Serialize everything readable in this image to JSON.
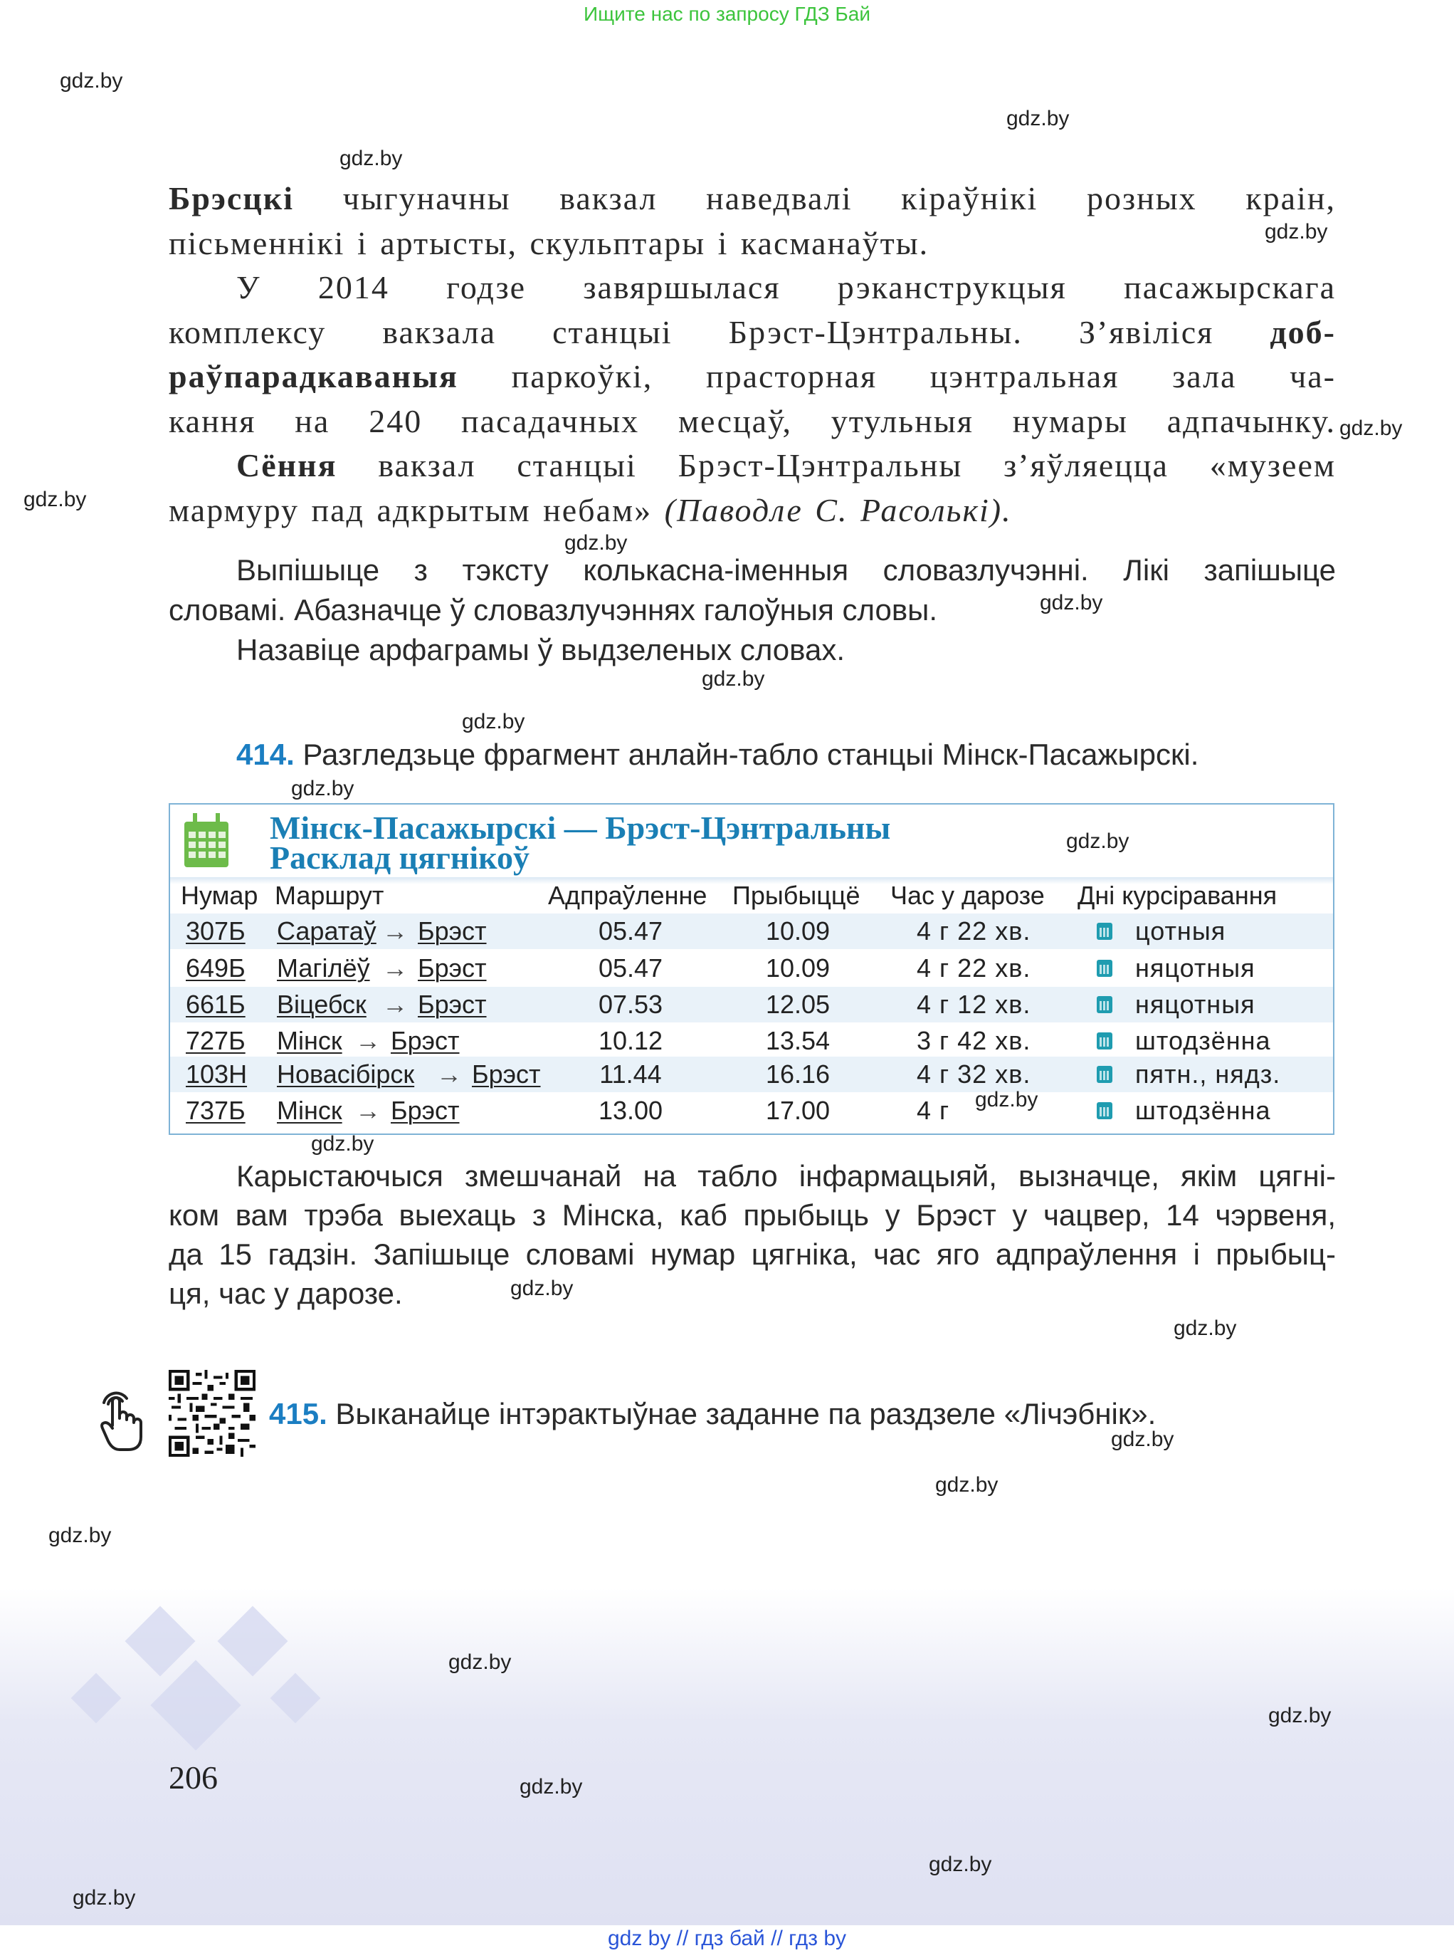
{
  "banner": "Ищите нас по запросу ГДЗ Бай",
  "watermark": "gdz.by",
  "paragraph1": [
    [
      {
        "t": "Брэсцкі",
        "b": true
      },
      {
        "t": " чыгуначны вакзал наведвалі кіраўнікі розных краін,"
      }
    ],
    [
      {
        "t": "пісьменнікі і артысты, скульптары і касманаўты."
      }
    ]
  ],
  "paragraph2": [
    [
      {
        "t": "У 2014 годзе завяршылася рэканструкцыя пасажырскага"
      }
    ],
    [
      {
        "t": "комплексу вакзала станцыі Брэст-Цэнтральны. З’явіліся "
      },
      {
        "t": "доб-",
        "b": true
      }
    ],
    [
      {
        "t": "раўпарадкаваныя",
        "b": true
      },
      {
        "t": " паркоўкі, прасторная цэнтральная зала ча-"
      }
    ],
    [
      {
        "t": "кання на 240 пасадачных месцаў, утульныя нумары адпачынку."
      }
    ]
  ],
  "paragraph3": [
    [
      {
        "t": "Сёння",
        "b": true
      },
      {
        "t": " вакзал станцыі Брэст-Цэнтральны з’яўляецца «музеем"
      }
    ],
    [
      {
        "t": "мармуру пад адкрытым небам» "
      },
      {
        "t": "(Паводле С. Расолькі).",
        "i": true
      }
    ]
  ],
  "task_413": [
    "Выпішыце з тэксту колькасна-іменныя словазлучэнні. Лікі запішыце",
    "словамі. Абазначце ў словазлучэннях галоўныя словы.",
    "Назавіце арфаграмы ў выдзеленых словах."
  ],
  "task_414": {
    "number": "414.",
    "text": " Разгледзьце фрагмент анлайн-табло станцыі Мінск-Пасажырскі."
  },
  "timetable": {
    "title_line1": "Мінск-Пасажырскі — Брэст-Цэнтральны",
    "title_line2": "Расклад цягнікоў",
    "headers": [
      "Нумар",
      "Маршрут",
      "Адпраўленне",
      "Прыбыццё",
      "Час у дарозе",
      "Дні курсіравання"
    ],
    "arrow": "→",
    "rows": [
      {
        "num": "307Б",
        "from": "Саратаў",
        "to": "Брэст",
        "dep": "05.47",
        "arr": "10.09",
        "dur": "4 г 22 хв.",
        "days": "цотныя"
      },
      {
        "num": "649Б",
        "from": "Магілёў",
        "to": "Брэст",
        "dep": "05.47",
        "arr": "10.09",
        "dur": "4 г 22 хв.",
        "days": "няцотныя"
      },
      {
        "num": "661Б",
        "from": "Віцебск",
        "to": "Брэст",
        "dep": "07.53",
        "arr": "12.05",
        "dur": "4 г 12 хв.",
        "days": "няцотныя"
      },
      {
        "num": "727Б",
        "from": "Мінск",
        "to": "Брэст",
        "dep": "10.12",
        "arr": "13.54",
        "dur": "3 г 42 хв.",
        "days": "штодзённа"
      },
      {
        "num": "103Н",
        "from": "Новасібірск",
        "to": "Брэст",
        "dep": "11.44",
        "arr": "16.16",
        "dur": "4 г 32 хв.",
        "days": "пятн., нядз."
      },
      {
        "num": "737Б",
        "from": "Мінск",
        "to": "Брэст",
        "dep": "13.00",
        "arr": "17.00",
        "dur": "4 г",
        "days": "штодзённа"
      }
    ]
  },
  "task_414_text": [
    "Карыстаючыся змешчанай на табло інфармацыяй, вызначце, якім цягні-",
    "ком вам трэба выехаць з Мінска, каб прыбыць у Брэст у чацвер, 14 чэрвеня,",
    "да 15 гадзін. Запішыце словамі нумар цягніка, час яго адпраўлення і прыбыц-",
    "ця, час у дарозе."
  ],
  "task_415": {
    "number": "415.",
    "text": " Выканайце інтэрактыўнае заданне па раздзеле «Лічэбнік»."
  },
  "page_number": "206",
  "footer_links": "gdz by  //  гдз бай  //  гдз by",
  "colors": {
    "accent": "#1b7ec2",
    "banner": "#3cc43c",
    "footer_links": "#2a55d8"
  }
}
